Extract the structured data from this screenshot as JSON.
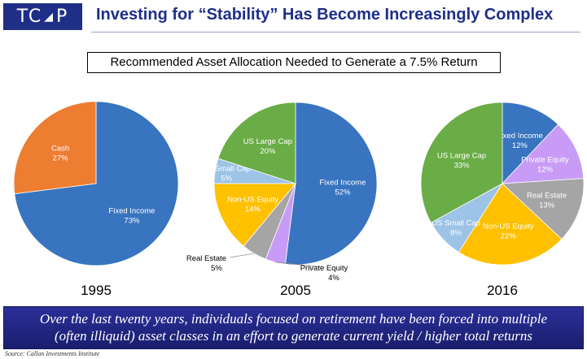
{
  "header": {
    "logo_text_left": "TC",
    "logo_text_right": "P",
    "title": "Investing for “Stability” Has Become Increasingly Complex"
  },
  "subtitle": "Recommended Asset Allocation Needed to Generate a 7.5% Return",
  "chart_data": [
    {
      "type": "pie",
      "year_label": "1995",
      "slices": [
        {
          "label": "Fixed Income",
          "value": 73,
          "pct_text": "73%",
          "color": "#3874bf"
        },
        {
          "label": "Cash",
          "value": 27,
          "pct_text": "27%",
          "color": "#ed7d31"
        }
      ]
    },
    {
      "type": "pie",
      "year_label": "2005",
      "slices": [
        {
          "label": "Fixed Income",
          "value": 52,
          "pct_text": "52%",
          "color": "#3874bf"
        },
        {
          "label": "Private Equity",
          "value": 4,
          "pct_text": "4%",
          "color": "#c89cf6"
        },
        {
          "label": "Real Estate",
          "value": 5,
          "pct_text": "5%",
          "color": "#a5a5a5"
        },
        {
          "label": "Non-US Equity",
          "value": 14,
          "pct_text": "14%",
          "color": "#ffc000"
        },
        {
          "label": "US Small Cap",
          "value": 5,
          "pct_text": "5%",
          "color": "#9dc3e6"
        },
        {
          "label": "US Large Cap",
          "value": 20,
          "pct_text": "20%",
          "color": "#6aac46"
        }
      ]
    },
    {
      "type": "pie",
      "year_label": "2016",
      "slices": [
        {
          "label": "Fixed Income",
          "value": 12,
          "pct_text": "12%",
          "color": "#3874bf"
        },
        {
          "label": "Private Equity",
          "value": 12,
          "pct_text": "12%",
          "color": "#c89cf6"
        },
        {
          "label": "Real Estate",
          "value": 13,
          "pct_text": "13%",
          "color": "#a5a5a5"
        },
        {
          "label": "Non-US Equity",
          "value": 22,
          "pct_text": "22%",
          "color": "#ffc000"
        },
        {
          "label": "US Small Cap",
          "value": 8,
          "pct_text": "8%",
          "color": "#9dc3e6"
        },
        {
          "label": "US Large Cap",
          "value": 33,
          "pct_text": "33%",
          "color": "#6aac46"
        }
      ]
    }
  ],
  "banner": {
    "line1": "Over the last twenty years, individuals focused on retirement have been forced into multiple",
    "line2": "(often illiquid) asset classes in an effort to generate current yield / higher total returns"
  },
  "source": "Source: Callan Investments Institute",
  "colors": {
    "brand_navy": "#1f2f88",
    "banner_blue": "#2b2f98"
  }
}
